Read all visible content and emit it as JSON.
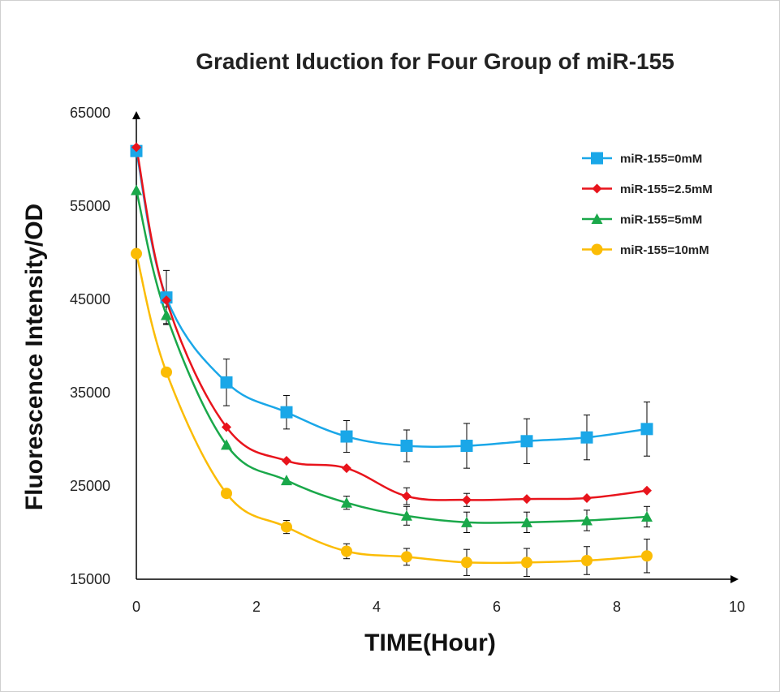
{
  "chart_data": {
    "type": "line",
    "title": "Gradient Iduction for Four Group of miR-155",
    "xlabel": "TIME(Hour)",
    "ylabel": "Fluorescence Intensity/OD",
    "xlim": [
      0,
      10
    ],
    "ylim": [
      15000,
      65000
    ],
    "xticks": [
      0,
      2,
      4,
      6,
      8,
      10
    ],
    "yticks": [
      15000,
      25000,
      35000,
      45000,
      55000,
      65000
    ],
    "grid": false,
    "legend_position": "top-right",
    "x": [
      0,
      0.5,
      1.5,
      2.5,
      3.5,
      4.5,
      5.5,
      6.5,
      7.5,
      8.5
    ],
    "series": [
      {
        "name": "miR-155=0mM",
        "color": "#1aa7e8",
        "marker": "square",
        "values": [
          60900,
          45200,
          36100,
          32900,
          30300,
          29300,
          29300,
          29800,
          30200,
          31100
        ],
        "errors": [
          0,
          2900,
          2500,
          1800,
          1700,
          1700,
          2400,
          2400,
          2400,
          2900
        ]
      },
      {
        "name": "miR-155=2.5mM",
        "color": "#e8141c",
        "marker": "diamond",
        "values": [
          61300,
          44900,
          31300,
          27700,
          26900,
          23900,
          23500,
          23600,
          23700,
          24500
        ],
        "errors": [
          0,
          0,
          0,
          0,
          0,
          900,
          700,
          0,
          0,
          0
        ]
      },
      {
        "name": "miR-155=5mM",
        "color": "#1aa84a",
        "marker": "triangle",
        "values": [
          56700,
          43300,
          29400,
          25600,
          23200,
          21800,
          21100,
          21100,
          21300,
          21700
        ],
        "errors": [
          0,
          900,
          0,
          0,
          700,
          1000,
          1100,
          1100,
          1100,
          1100
        ]
      },
      {
        "name": "miR-155=10mM",
        "color": "#fbbc05",
        "marker": "circle",
        "values": [
          49900,
          37200,
          24200,
          20600,
          18000,
          17400,
          16800,
          16800,
          17000,
          17500
        ],
        "errors": [
          0,
          0,
          0,
          700,
          800,
          900,
          1400,
          1500,
          1500,
          1800
        ]
      }
    ]
  }
}
